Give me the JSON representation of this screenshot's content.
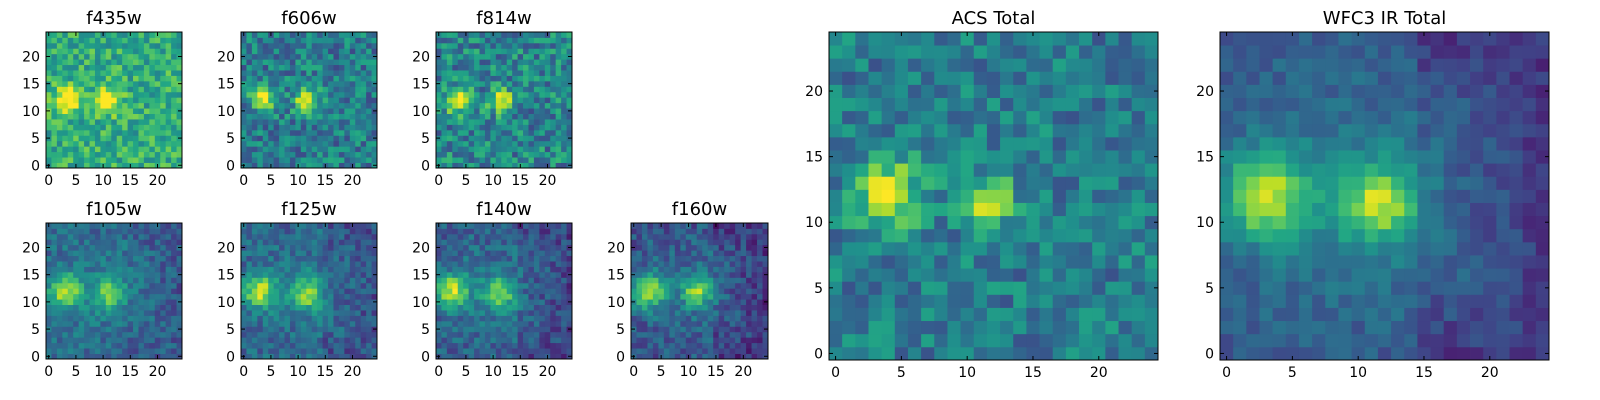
{
  "chart_data": [
    {
      "type": "heatmap",
      "title": "f435w",
      "xticks": [
        0,
        5,
        10,
        15,
        20
      ],
      "yticks": [
        0,
        5,
        10,
        15,
        20
      ],
      "xlim": [
        0,
        24
      ],
      "ylim": [
        0,
        24
      ],
      "colormap": "viridis",
      "sources": [
        {
          "x": 3.5,
          "y": 12,
          "amp": 0.55,
          "sigma": 1.6
        },
        {
          "x": 11,
          "y": 12,
          "amp": 0.5,
          "sigma": 1.6
        }
      ],
      "background": 0.62,
      "noise": 0.18,
      "edge_falloff": 0.0
    },
    {
      "type": "heatmap",
      "title": "f606w",
      "xticks": [
        0,
        5,
        10,
        15,
        20
      ],
      "yticks": [
        0,
        5,
        10,
        15,
        20
      ],
      "xlim": [
        0,
        24
      ],
      "ylim": [
        0,
        24
      ],
      "colormap": "viridis",
      "sources": [
        {
          "x": 3.5,
          "y": 12.5,
          "amp": 0.6,
          "sigma": 1.6
        },
        {
          "x": 11.5,
          "y": 12,
          "amp": 0.5,
          "sigma": 1.6
        }
      ],
      "background": 0.42,
      "noise": 0.2,
      "edge_falloff": 0.0
    },
    {
      "type": "heatmap",
      "title": "f814w",
      "xticks": [
        0,
        5,
        10,
        15,
        20
      ],
      "yticks": [
        0,
        5,
        10,
        15,
        20
      ],
      "xlim": [
        0,
        24
      ],
      "ylim": [
        0,
        24
      ],
      "colormap": "viridis",
      "sources": [
        {
          "x": 3.5,
          "y": 12,
          "amp": 0.6,
          "sigma": 1.6
        },
        {
          "x": 11.5,
          "y": 12,
          "amp": 0.55,
          "sigma": 1.5
        }
      ],
      "background": 0.45,
      "noise": 0.22,
      "edge_falloff": 0.0
    },
    {
      "type": "heatmap",
      "title": "f105w",
      "xticks": [
        0,
        5,
        10,
        15,
        20
      ],
      "yticks": [
        0,
        5,
        10,
        15,
        20
      ],
      "xlim": [
        0,
        24
      ],
      "ylim": [
        0,
        24
      ],
      "colormap": "viridis",
      "sources": [
        {
          "x": 3,
          "y": 12,
          "amp": 0.55,
          "sigma": 2.2
        },
        {
          "x": 11,
          "y": 11.5,
          "amp": 0.4,
          "sigma": 2.0
        }
      ],
      "background": 0.42,
      "noise": 0.12,
      "edge_falloff": 0.15
    },
    {
      "type": "heatmap",
      "title": "f125w",
      "xticks": [
        0,
        5,
        10,
        15,
        20
      ],
      "yticks": [
        0,
        5,
        10,
        15,
        20
      ],
      "xlim": [
        0,
        24
      ],
      "ylim": [
        0,
        24
      ],
      "colormap": "viridis",
      "sources": [
        {
          "x": 3,
          "y": 12,
          "amp": 0.55,
          "sigma": 2.2
        },
        {
          "x": 11.5,
          "y": 11.5,
          "amp": 0.45,
          "sigma": 2.0
        }
      ],
      "background": 0.42,
      "noise": 0.13,
      "edge_falloff": 0.18
    },
    {
      "type": "heatmap",
      "title": "f140w",
      "xticks": [
        0,
        5,
        10,
        15,
        20
      ],
      "yticks": [
        0,
        5,
        10,
        15,
        20
      ],
      "xlim": [
        0,
        24
      ],
      "ylim": [
        0,
        24
      ],
      "colormap": "viridis",
      "sources": [
        {
          "x": 2.5,
          "y": 12,
          "amp": 0.6,
          "sigma": 2.2
        },
        {
          "x": 11,
          "y": 11.5,
          "amp": 0.45,
          "sigma": 2.0
        }
      ],
      "background": 0.4,
      "noise": 0.13,
      "edge_falloff": 0.2
    },
    {
      "type": "heatmap",
      "title": "f160w",
      "xticks": [
        0,
        5,
        10,
        15,
        20
      ],
      "yticks": [
        0,
        5,
        10,
        15,
        20
      ],
      "xlim": [
        0,
        24
      ],
      "ylim": [
        0,
        24
      ],
      "colormap": "viridis",
      "sources": [
        {
          "x": 2.5,
          "y": 12,
          "amp": 0.6,
          "sigma": 2.2
        },
        {
          "x": 11.5,
          "y": 12,
          "amp": 0.5,
          "sigma": 1.9
        }
      ],
      "background": 0.38,
      "noise": 0.13,
      "edge_falloff": 0.22
    },
    {
      "type": "heatmap",
      "title": "ACS Total",
      "xticks": [
        0,
        5,
        10,
        15,
        20
      ],
      "yticks": [
        0,
        5,
        10,
        15,
        20
      ],
      "xlim": [
        0,
        24
      ],
      "ylim": [
        0,
        24
      ],
      "colormap": "viridis",
      "sources": [
        {
          "x": 4,
          "y": 12,
          "amp": 0.55,
          "sigma": 1.8
        },
        {
          "x": 11.5,
          "y": 11.5,
          "amp": 0.5,
          "sigma": 1.4
        }
      ],
      "background": 0.42,
      "noise": 0.17,
      "edge_falloff": 0.0
    },
    {
      "type": "heatmap",
      "title": "WFC3 IR Total",
      "xticks": [
        0,
        5,
        10,
        15,
        20
      ],
      "yticks": [
        0,
        5,
        10,
        15,
        20
      ],
      "xlim": [
        0,
        24
      ],
      "ylim": [
        0,
        24
      ],
      "colormap": "viridis",
      "sources": [
        {
          "x": 3,
          "y": 12,
          "amp": 0.6,
          "sigma": 2.4
        },
        {
          "x": 11.5,
          "y": 11.5,
          "amp": 0.5,
          "sigma": 2.1
        }
      ],
      "background": 0.42,
      "noise": 0.08,
      "edge_falloff": 0.25
    }
  ]
}
